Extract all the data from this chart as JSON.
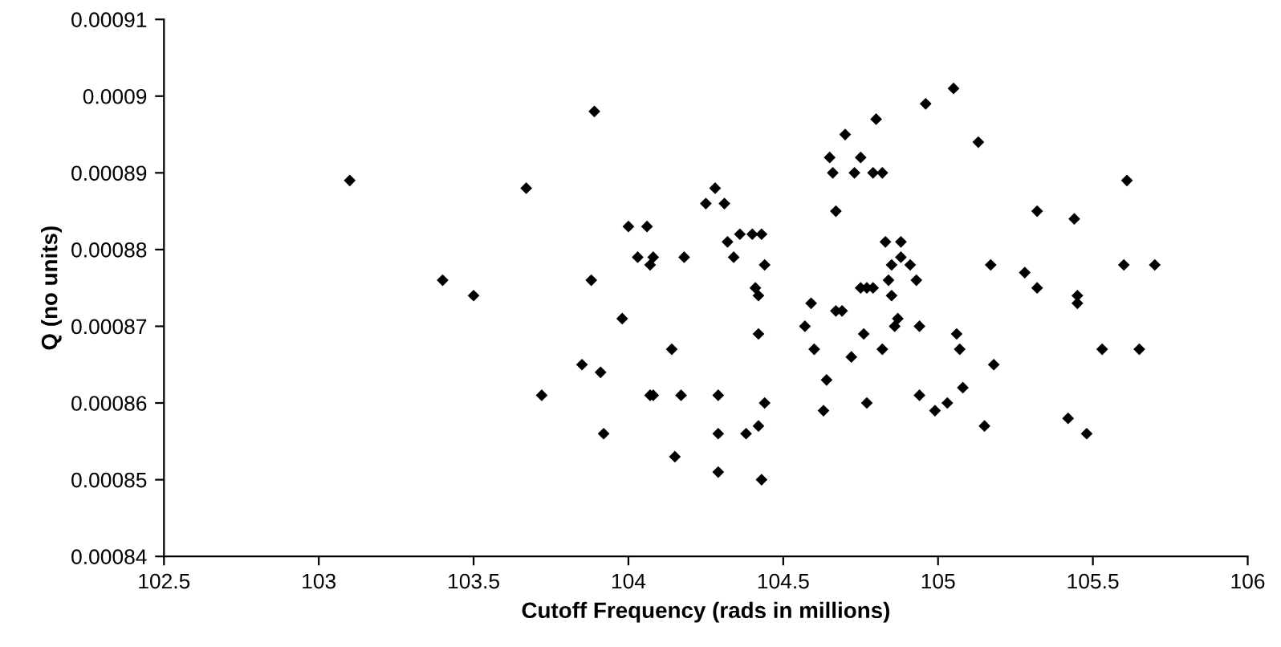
{
  "chart_data": {
    "type": "scatter",
    "xlabel": "Cutoff Frequency (rads in millions)",
    "ylabel": "Q (no units)",
    "xlim": [
      102.5,
      106
    ],
    "xticks": [
      102.5,
      103,
      103.5,
      104,
      104.5,
      105,
      105.5,
      106
    ],
    "ylim": [
      0.00084,
      0.00091
    ],
    "yticks": [
      0.00084,
      0.00085,
      0.00086,
      0.00087,
      0.00088,
      0.00089,
      0.0009,
      0.00091
    ],
    "grid": false,
    "marker": "diamond",
    "series": [
      {
        "color": "#000000",
        "x": [
          103.1,
          103.4,
          103.5,
          103.67,
          103.72,
          103.85,
          103.88,
          103.89,
          103.91,
          103.92,
          103.98,
          104.0,
          104.03,
          104.06,
          104.07,
          104.07,
          104.08,
          104.08,
          104.14,
          104.15,
          104.17,
          104.18,
          104.25,
          104.28,
          104.29,
          104.29,
          104.29,
          104.31,
          104.32,
          104.34,
          104.36,
          104.38,
          104.4,
          104.41,
          104.42,
          104.42,
          104.42,
          104.43,
          104.44,
          104.44,
          104.43,
          104.57,
          104.59,
          104.6,
          104.63,
          104.64,
          104.65,
          104.66,
          104.67,
          104.67,
          104.69,
          104.7,
          104.72,
          104.73,
          104.75,
          104.75,
          104.76,
          104.77,
          104.77,
          104.79,
          104.79,
          104.8,
          104.82,
          104.82,
          104.83,
          104.84,
          104.85,
          104.85,
          104.86,
          104.87,
          104.88,
          104.88,
          104.91,
          104.93,
          104.94,
          104.94,
          104.96,
          104.99,
          105.03,
          105.05,
          105.06,
          105.07,
          105.08,
          105.13,
          105.15,
          105.17,
          105.18,
          105.28,
          105.32,
          105.32,
          105.42,
          105.44,
          105.45,
          105.45,
          105.48,
          105.53,
          105.6,
          105.61,
          105.65,
          105.7
        ],
        "values": [
          0.000889,
          0.000876,
          0.000874,
          0.000888,
          0.000861,
          0.000865,
          0.000876,
          0.000898,
          0.000864,
          0.000856,
          0.000871,
          0.000883,
          0.000879,
          0.000883,
          0.000878,
          0.000861,
          0.000861,
          0.000879,
          0.000867,
          0.000853,
          0.000861,
          0.000879,
          0.000886,
          0.000888,
          0.000861,
          0.000856,
          0.000851,
          0.000886,
          0.000881,
          0.000879,
          0.000882,
          0.000856,
          0.000882,
          0.000875,
          0.000874,
          0.000869,
          0.000857,
          0.00085,
          0.00086,
          0.000878,
          0.000882,
          0.00087,
          0.000873,
          0.000867,
          0.000859,
          0.000863,
          0.000892,
          0.00089,
          0.000885,
          0.000872,
          0.000872,
          0.000895,
          0.000866,
          0.00089,
          0.000892,
          0.000875,
          0.000869,
          0.000875,
          0.00086,
          0.000875,
          0.00089,
          0.000897,
          0.00089,
          0.000867,
          0.000881,
          0.000876,
          0.000878,
          0.000874,
          0.00087,
          0.000871,
          0.000879,
          0.000881,
          0.000878,
          0.000876,
          0.00087,
          0.000861,
          0.000899,
          0.000859,
          0.00086,
          0.000901,
          0.000869,
          0.000867,
          0.000862,
          0.000894,
          0.000857,
          0.000878,
          0.000865,
          0.000877,
          0.000885,
          0.000875,
          0.000858,
          0.000884,
          0.000874,
          0.000873,
          0.000856,
          0.000867,
          0.000878,
          0.000889,
          0.000867,
          0.000878
        ]
      }
    ]
  }
}
